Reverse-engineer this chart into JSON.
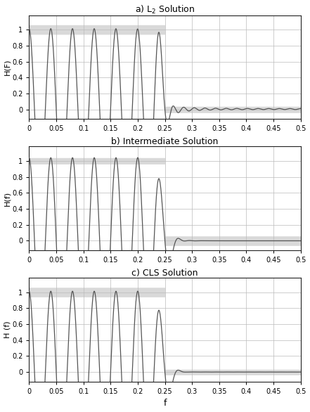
{
  "titles": [
    "a) L$_2$ Solution",
    "b) Intermediate Solution",
    "c) CLS Solution"
  ],
  "ylabel_top": "H(F)",
  "ylabel_mid": "H(f)",
  "ylabel_bot": "H (f)",
  "xlabel": "f",
  "xlim": [
    0,
    0.5
  ],
  "xticks": [
    0,
    0.05,
    0.1,
    0.15,
    0.2,
    0.25,
    0.3,
    0.35,
    0.4,
    0.45,
    0.5
  ],
  "yticks": [
    0,
    0.2,
    0.4,
    0.6,
    0.8,
    1
  ],
  "ylim": [
    -0.12,
    1.18
  ],
  "cutoff": 0.25,
  "n_points": 4000,
  "line_color": "#555555",
  "line_width": 0.9,
  "bg_color": "#ffffff",
  "grid_color": "#bbbbbb",
  "band_color": "#bbbbbb",
  "band_alpha": 0.55,
  "pass_band_lo": [
    0.94,
    0.96,
    0.94
  ],
  "pass_band_hi": [
    1.06,
    1.04,
    1.06
  ],
  "stop_band_lo": [
    -0.04,
    -0.06,
    -0.035
  ],
  "stop_band_hi": [
    0.04,
    0.06,
    0.035
  ]
}
